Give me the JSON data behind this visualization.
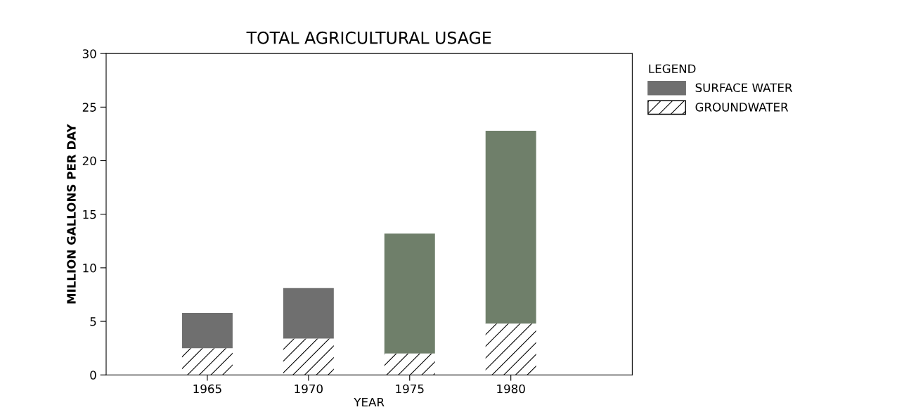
{
  "chart_data": {
    "type": "bar",
    "title": "TOTAL AGRICULTURAL USAGE",
    "xlabel": "YEAR",
    "ylabel": "MILLION GALLONS PER DAY",
    "legend_title": "LEGEND",
    "categories": [
      "1965",
      "1970",
      "1975",
      "1980"
    ],
    "stacked": true,
    "series": [
      {
        "name": "GROUNDWATER",
        "color": "#ffffff",
        "values": [
          2.5,
          3.4,
          2.0,
          4.8
        ]
      },
      {
        "name": "SURFACE WATER",
        "color": "#6f6f6f",
        "colors": [
          "#6f6f6f",
          "#6f6f6f",
          "#6f7f6a",
          "#6f7f6a"
        ],
        "values": [
          3.3,
          4.7,
          11.2,
          18.0
        ]
      }
    ],
    "ylim": [
      0,
      30
    ],
    "yticks": [
      0,
      5,
      10,
      15,
      20,
      25,
      30
    ],
    "grid": false,
    "legend": "top right"
  }
}
